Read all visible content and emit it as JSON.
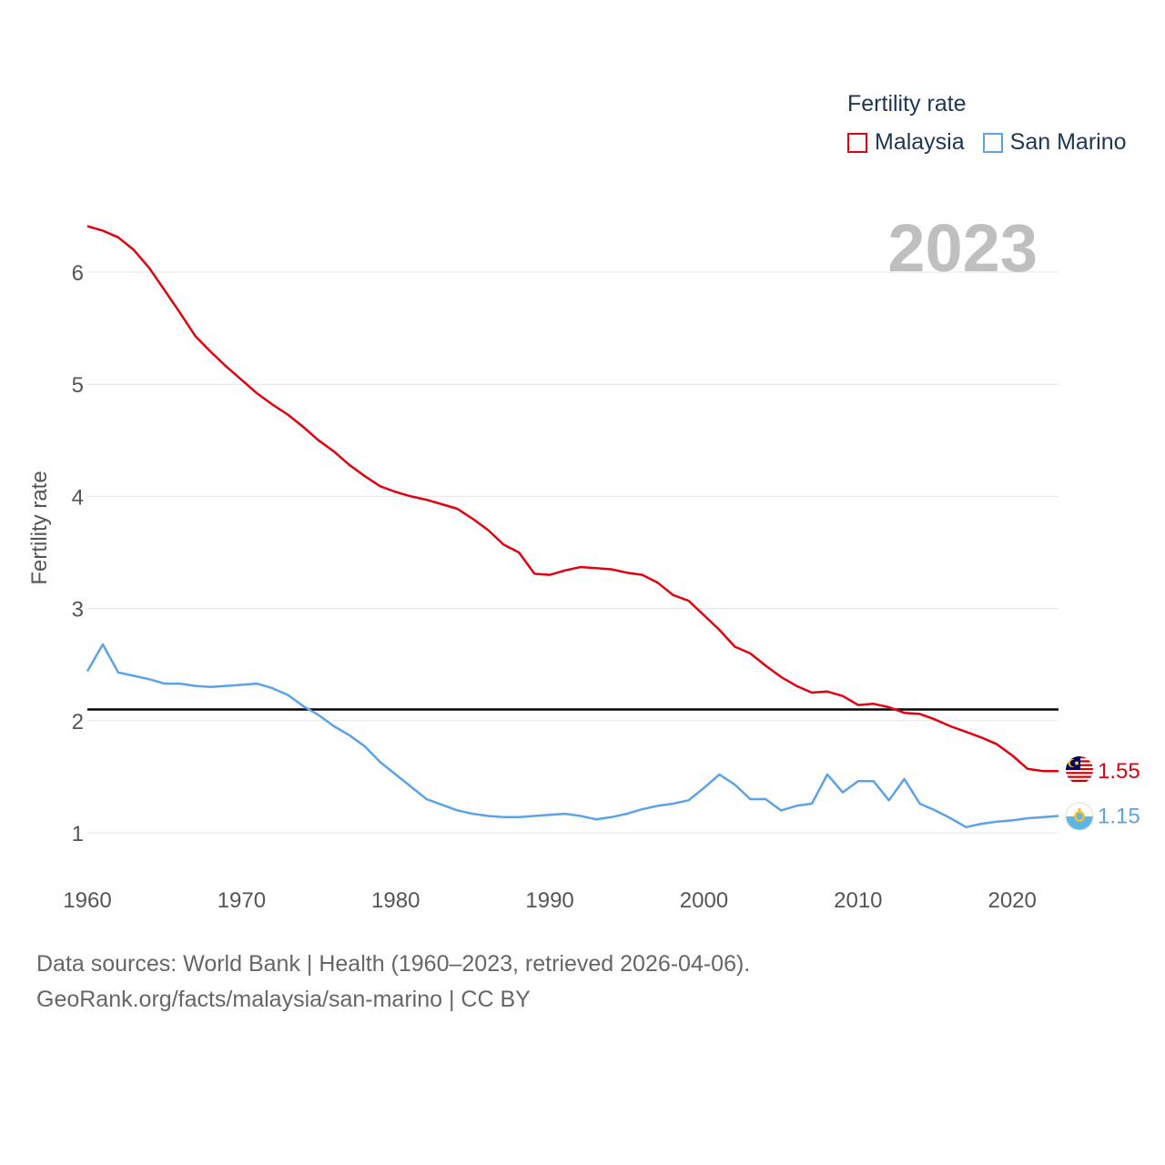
{
  "chart_data": {
    "type": "line",
    "title": "",
    "ylabel": "Fertility rate",
    "xlabel": "",
    "year_label": "2023",
    "xlim": [
      1960,
      2023
    ],
    "ylim": [
      0.6,
      6.8
    ],
    "x_ticks": [
      1960,
      1970,
      1980,
      1990,
      2000,
      2010,
      2020
    ],
    "y_ticks": [
      1,
      2,
      3,
      4,
      5,
      6
    ],
    "reference_line": {
      "value": 2.1,
      "color": "#000000"
    },
    "legend_title": "Fertility rate",
    "legend_position": "top-right",
    "series": [
      {
        "name": "Malaysia",
        "color": "#e3000f",
        "end_label": "1.55",
        "x": [
          1960,
          1961,
          1962,
          1963,
          1964,
          1965,
          1966,
          1967,
          1968,
          1969,
          1970,
          1971,
          1972,
          1973,
          1974,
          1975,
          1976,
          1977,
          1978,
          1979,
          1980,
          1981,
          1982,
          1983,
          1984,
          1985,
          1986,
          1987,
          1988,
          1989,
          1990,
          1991,
          1992,
          1993,
          1994,
          1995,
          1996,
          1997,
          1998,
          1999,
          2000,
          2001,
          2002,
          2003,
          2004,
          2005,
          2006,
          2007,
          2008,
          2009,
          2010,
          2011,
          2012,
          2013,
          2014,
          2015,
          2016,
          2017,
          2018,
          2019,
          2020,
          2021,
          2022,
          2023
        ],
        "values": [
          6.41,
          6.37,
          6.31,
          6.2,
          6.04,
          5.84,
          5.64,
          5.43,
          5.29,
          5.16,
          5.04,
          4.92,
          4.82,
          4.73,
          4.62,
          4.5,
          4.4,
          4.28,
          4.18,
          4.09,
          4.04,
          4.0,
          3.97,
          3.93,
          3.89,
          3.8,
          3.7,
          3.57,
          3.5,
          3.31,
          3.3,
          3.34,
          3.37,
          3.36,
          3.35,
          3.32,
          3.3,
          3.23,
          3.12,
          3.07,
          2.94,
          2.81,
          2.66,
          2.6,
          2.49,
          2.39,
          2.31,
          2.25,
          2.26,
          2.22,
          2.14,
          2.15,
          2.12,
          2.07,
          2.06,
          2.01,
          1.95,
          1.9,
          1.85,
          1.79,
          1.69,
          1.57,
          1.55,
          1.55
        ]
      },
      {
        "name": "San Marino",
        "color": "#5ba3e6",
        "end_label": "1.15",
        "x": [
          1960,
          1961,
          1962,
          1963,
          1964,
          1965,
          1966,
          1967,
          1968,
          1969,
          1970,
          1971,
          1972,
          1973,
          1974,
          1975,
          1976,
          1977,
          1978,
          1979,
          1980,
          1981,
          1982,
          1983,
          1984,
          1985,
          1986,
          1987,
          1988,
          1989,
          1990,
          1991,
          1992,
          1993,
          1994,
          1995,
          1996,
          1997,
          1998,
          1999,
          2000,
          2001,
          2002,
          2003,
          2004,
          2005,
          2006,
          2007,
          2008,
          2009,
          2010,
          2011,
          2012,
          2013,
          2014,
          2015,
          2016,
          2017,
          2018,
          2019,
          2020,
          2021,
          2022,
          2023
        ],
        "values": [
          2.44,
          2.68,
          2.43,
          2.4,
          2.37,
          2.33,
          2.33,
          2.31,
          2.3,
          2.31,
          2.32,
          2.33,
          2.29,
          2.23,
          2.13,
          2.05,
          1.95,
          1.87,
          1.77,
          1.63,
          1.52,
          1.41,
          1.3,
          1.25,
          1.2,
          1.17,
          1.15,
          1.14,
          1.14,
          1.15,
          1.16,
          1.17,
          1.15,
          1.12,
          1.14,
          1.17,
          1.21,
          1.24,
          1.26,
          1.29,
          1.4,
          1.52,
          1.43,
          1.3,
          1.3,
          1.2,
          1.24,
          1.26,
          1.52,
          1.36,
          1.46,
          1.46,
          1.29,
          1.48,
          1.26,
          1.2,
          1.13,
          1.05,
          1.08,
          1.1,
          1.11,
          1.13,
          1.14,
          1.15
        ]
      }
    ]
  },
  "footer": {
    "line1": "Data sources: World Bank | Health (1960–2023, retrieved 2026-04-06).",
    "line2": "GeoRank.org/facts/malaysia/san-marino | CC BY"
  },
  "colors": {
    "grid": "#e6e6e6",
    "axis_text": "#555555",
    "year_text": "#bfbfbf"
  }
}
